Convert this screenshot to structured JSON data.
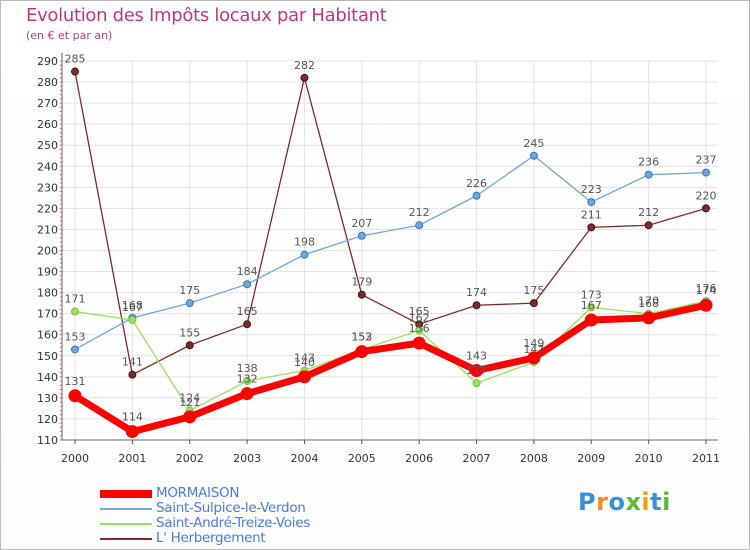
{
  "title": "Evolution des Impôts locaux par Habitant",
  "subtitle": "(en € et par an)",
  "logo": "Proxiti",
  "chart_data": {
    "type": "line",
    "title": "Evolution des Impôts locaux par Habitant",
    "subtitle": "(en € et par an)",
    "xlabel": "",
    "ylabel": "",
    "x": [
      "2000",
      "2001",
      "2002",
      "2003",
      "2004",
      "2005",
      "2006",
      "2007",
      "2008",
      "2009",
      "2010",
      "2011"
    ],
    "ylim": [
      110,
      290
    ],
    "yticks": [
      110,
      120,
      130,
      140,
      150,
      160,
      170,
      180,
      190,
      200,
      210,
      220,
      230,
      240,
      250,
      260,
      270,
      280,
      290
    ],
    "grid": true,
    "legend_position": "bottom-left",
    "series": [
      {
        "name": "MORMAISON",
        "color": "#ff0000",
        "values": [
          131,
          114,
          121,
          132,
          140,
          152,
          156,
          143,
          149,
          167,
          168,
          174
        ]
      },
      {
        "name": "Saint-Sulpice-le-Verdon",
        "color": "#6fa6dc",
        "values": [
          153,
          168,
          175,
          184,
          198,
          207,
          212,
          226,
          245,
          223,
          236,
          237
        ]
      },
      {
        "name": "Saint-André-Treize-Voies",
        "color": "#99e25c",
        "values": [
          171,
          167,
          124,
          138,
          143,
          153,
          162,
          137,
          147,
          173,
          170,
          176
        ]
      },
      {
        "name": "L' Herbergement",
        "color": "#7a2d2d",
        "values": [
          285,
          141,
          155,
          165,
          282,
          179,
          165,
          174,
          175,
          211,
          212,
          220
        ]
      }
    ]
  }
}
